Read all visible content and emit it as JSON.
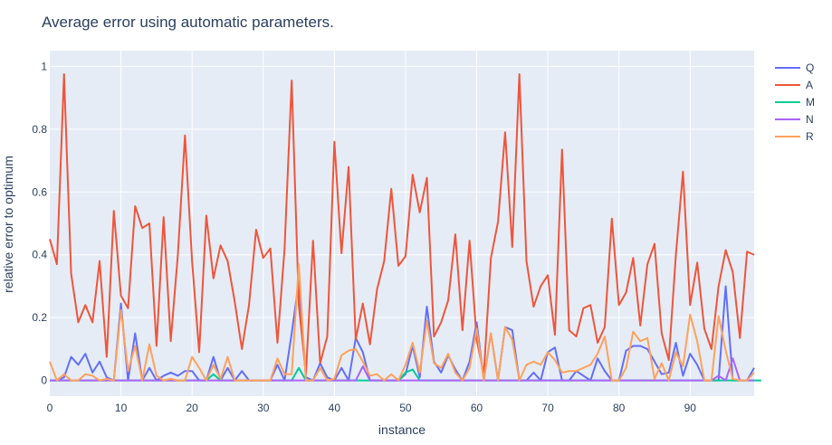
{
  "chart_data": {
    "type": "line",
    "title": "Average error using automatic parameters.",
    "xlabel": "instance",
    "ylabel": "relative error to optimum",
    "xlim": [
      0,
      99
    ],
    "ylim": [
      -0.05,
      1.05
    ],
    "x_ticks": [
      0,
      10,
      20,
      30,
      40,
      50,
      60,
      70,
      80,
      90
    ],
    "y_ticks": [
      0,
      0.2,
      0.4,
      0.6,
      0.8,
      1
    ],
    "y_tick_labels": [
      "0",
      "0.2",
      "0.4",
      "0.6",
      "0.8",
      "1"
    ],
    "plot_bg": "#e5ecf6",
    "grid": true,
    "legend_position": "top-right",
    "series": [
      {
        "name": "Q",
        "color": "#636efa",
        "values": [
          0,
          0,
          0.01,
          0.075,
          0.05,
          0.085,
          0.025,
          0.06,
          0.01,
          0,
          0.245,
          0,
          0.15,
          0,
          0.04,
          0,
          0.015,
          0.025,
          0.015,
          0.03,
          0.03,
          0,
          0,
          0.075,
          0,
          0.04,
          0,
          0.03,
          0,
          0,
          0,
          0,
          0.05,
          0,
          0.15,
          0.315,
          0.01,
          0,
          0.055,
          0.01,
          0,
          0.04,
          0,
          0.135,
          0.09,
          0,
          0,
          0,
          0,
          0,
          0.02,
          0.11,
          0.01,
          0.235,
          0.06,
          0.025,
          0.08,
          0.035,
          0,
          0.06,
          0.185,
          0,
          0.15,
          0,
          0.17,
          0.16,
          0,
          0,
          0.025,
          0,
          0.09,
          0.105,
          0,
          0,
          0.03,
          0.015,
          0,
          0.07,
          0.03,
          0,
          0,
          0.095,
          0.11,
          0.11,
          0.1,
          0.06,
          0.02,
          0.025,
          0.12,
          0.015,
          0.085,
          0.05,
          0,
          0,
          0,
          0.3,
          0,
          0,
          0,
          0.04
        ]
      },
      {
        "name": "A",
        "color": "#ef553b",
        "values": [
          0.45,
          0.37,
          0.975,
          0.34,
          0.185,
          0.24,
          0.185,
          0.38,
          0.075,
          0.54,
          0.27,
          0.23,
          0.555,
          0.485,
          0.5,
          0.11,
          0.52,
          0.125,
          0.4,
          0.78,
          0.38,
          0.09,
          0.525,
          0.325,
          0.43,
          0.38,
          0.25,
          0.1,
          0.24,
          0.48,
          0.39,
          0.42,
          0.12,
          0.42,
          0.955,
          0.24,
          0.02,
          0.445,
          0.055,
          0.14,
          0.76,
          0.405,
          0.68,
          0.13,
          0.245,
          0.115,
          0.29,
          0.38,
          0.61,
          0.365,
          0.395,
          0.655,
          0.535,
          0.645,
          0.14,
          0.185,
          0.255,
          0.465,
          0.16,
          0.445,
          0.13,
          0.02,
          0.39,
          0.505,
          0.79,
          0.425,
          0.975,
          0.38,
          0.235,
          0.3,
          0.335,
          0.145,
          0.735,
          0.16,
          0.14,
          0.23,
          0.24,
          0.12,
          0.17,
          0.515,
          0.24,
          0.28,
          0.39,
          0.175,
          0.37,
          0.435,
          0.15,
          0.065,
          0.4,
          0.665,
          0.24,
          0.375,
          0.165,
          0.1,
          0.3,
          0.415,
          0.345,
          0.135,
          0.41,
          0.4
        ]
      },
      {
        "name": "M",
        "color": "#00cc96",
        "values": [
          0,
          0,
          0,
          0,
          0,
          0,
          0,
          0,
          0,
          0,
          0,
          0,
          0,
          0,
          0,
          0,
          0,
          0,
          0,
          0,
          0,
          0,
          0,
          0.02,
          0,
          0,
          0,
          0,
          0,
          0,
          0,
          0,
          0,
          0,
          0,
          0.04,
          0,
          0,
          0,
          0,
          0,
          0,
          0,
          0,
          0,
          0,
          0,
          0,
          0,
          0,
          0.025,
          0.035,
          0,
          0,
          0,
          0,
          0,
          0,
          0,
          0,
          0,
          0,
          0,
          0,
          0,
          0,
          0,
          0,
          0,
          0,
          0,
          0,
          0,
          0,
          0,
          0,
          0,
          0,
          0,
          0,
          0,
          0,
          0,
          0,
          0,
          0,
          0,
          0,
          0,
          0,
          0,
          0,
          0,
          0,
          0,
          0,
          0,
          0,
          0,
          0,
          0
        ]
      },
      {
        "name": "N",
        "color": "#ab63fa",
        "values": [
          0,
          0,
          0,
          0,
          0,
          0,
          0,
          0,
          0,
          0,
          0,
          0,
          0,
          0,
          0,
          0,
          0,
          0,
          0,
          0,
          0,
          0,
          0,
          0,
          0,
          0,
          0,
          0,
          0,
          0,
          0,
          0,
          0,
          0,
          0,
          0,
          0,
          0,
          0,
          0,
          0,
          0,
          0,
          0,
          0.045,
          0,
          0,
          0,
          0,
          0,
          0,
          0,
          0,
          0,
          0,
          0,
          0,
          0,
          0,
          0,
          0,
          0,
          0,
          0,
          0,
          0,
          0,
          0,
          0,
          0,
          0,
          0,
          0,
          0,
          0,
          0,
          0,
          0,
          0,
          0,
          0,
          0,
          0,
          0,
          0,
          0,
          0,
          0,
          0,
          0,
          0,
          0,
          0,
          0,
          0.015,
          0,
          0.07,
          0,
          0,
          0
        ]
      },
      {
        "name": "R",
        "color": "#ffa15a",
        "values": [
          0.06,
          0,
          0.02,
          0,
          0,
          0.02,
          0.015,
          0,
          0.005,
          0,
          0.225,
          0.03,
          0.11,
          0,
          0.115,
          0.015,
          0,
          0.005,
          0,
          0,
          0.075,
          0.04,
          0,
          0.05,
          0.005,
          0.075,
          0,
          0,
          0,
          0,
          0,
          0,
          0.07,
          0.02,
          0.02,
          0.37,
          0,
          0,
          0.04,
          0,
          0.005,
          0.08,
          0.095,
          0.1,
          0.06,
          0.015,
          0.02,
          0,
          0.02,
          0,
          0.05,
          0.12,
          0.025,
          0.19,
          0.055,
          0.04,
          0.085,
          0.025,
          0,
          0.04,
          0.165,
          0,
          0.15,
          0,
          0.17,
          0.13,
          0,
          0.05,
          0.06,
          0.05,
          0.09,
          0.065,
          0.025,
          0.03,
          0.03,
          0.04,
          0.05,
          0.085,
          0.14,
          0,
          0,
          0.04,
          0.155,
          0.125,
          0.135,
          0.005,
          0.055,
          0,
          0.09,
          0.045,
          0.21,
          0.125,
          0,
          0,
          0.205,
          0.095,
          0.005,
          0,
          0,
          0.025
        ]
      }
    ]
  }
}
